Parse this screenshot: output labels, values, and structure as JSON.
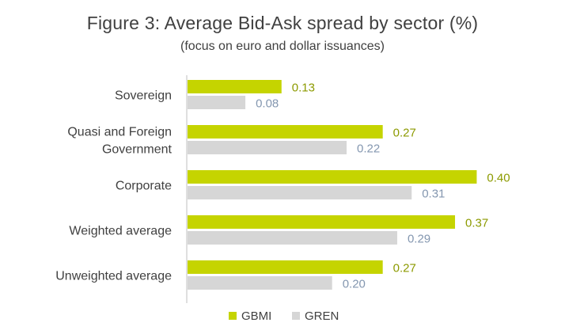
{
  "chart_data": {
    "type": "bar",
    "orientation": "horizontal",
    "title": "Figure 3: Average Bid-Ask spread by sector (%)",
    "subtitle": "(focus on euro and dollar issuances)",
    "categories": [
      [
        "Sovereign"
      ],
      [
        "Quasi and Foreign",
        "Government"
      ],
      [
        "Corporate"
      ],
      [
        "Weighted average"
      ],
      [
        "Unweighted average"
      ]
    ],
    "series": [
      {
        "name": "GBMI",
        "color": "#c5d400",
        "label_color": "#8c9a00",
        "values": [
          0.13,
          0.27,
          0.4,
          0.37,
          0.27
        ],
        "labels": [
          "0.13",
          "0.27",
          "0.40",
          "0.37",
          "0.27"
        ]
      },
      {
        "name": "GREN",
        "color": "#d6d6d6",
        "label_color": "#8497b0",
        "values": [
          0.08,
          0.22,
          0.31,
          0.29,
          0.2
        ],
        "labels": [
          "0.08",
          "0.22",
          "0.31",
          "0.29",
          "0.20"
        ]
      }
    ],
    "xlim": [
      0,
      0.405
    ],
    "legend_position": "bottom-center",
    "grid": false
  }
}
